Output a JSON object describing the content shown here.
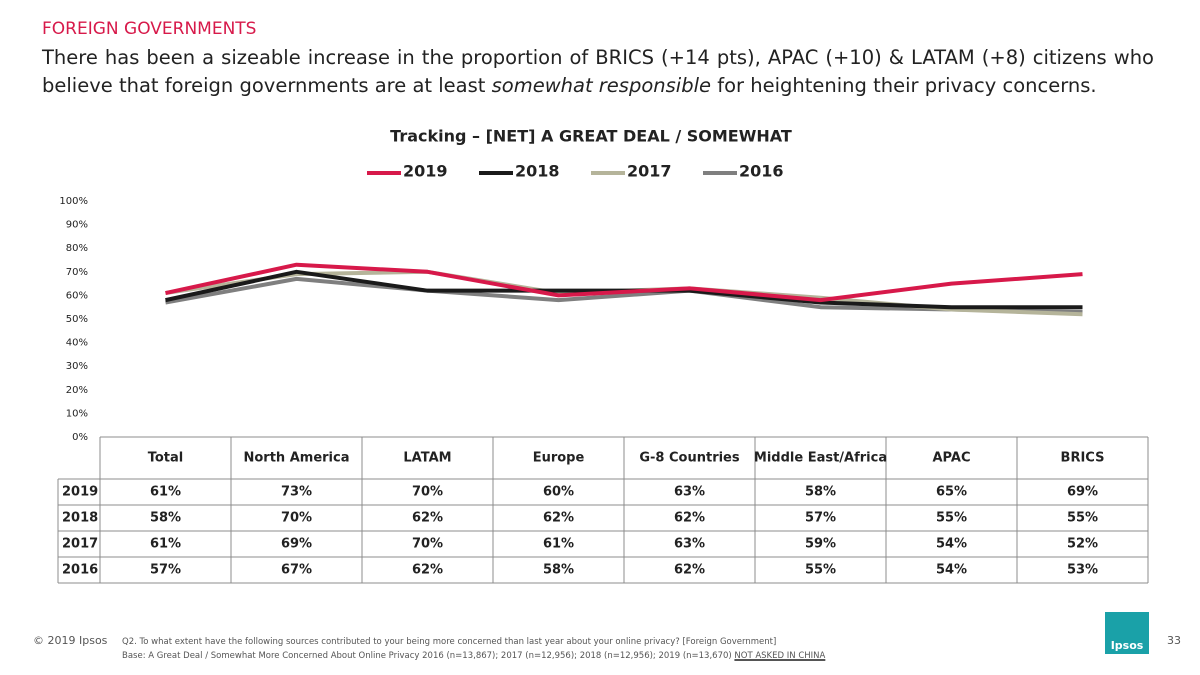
{
  "header": {
    "section": "FOREIGN GOVERNMENTS",
    "headline": [
      "There has been a sizeable increase in the proportion of BRICS (+14 pts), APAC (+10) & LATAM (+8) citizens who believe that foreign governments are at least ",
      "somewhat responsible",
      " for heightening their privacy concerns."
    ]
  },
  "chart_data": {
    "type": "line",
    "title": "Tracking – [NET] A GREAT DEAL / SOMEWHAT",
    "categories": [
      "Total",
      "North America",
      "LATAM",
      "Europe",
      "G-8 Countries",
      "Middle East/Africa",
      "APAC",
      "BRICS"
    ],
    "ylim": [
      0,
      100
    ],
    "yticks": [
      {
        "value": 0,
        "label": "0%"
      },
      {
        "value": 10,
        "label": "10%"
      },
      {
        "value": 20,
        "label": "20%"
      },
      {
        "value": 30,
        "label": "30%"
      },
      {
        "value": 40,
        "label": "40%"
      },
      {
        "value": 50,
        "label": "50%"
      },
      {
        "value": 60,
        "label": "60%"
      },
      {
        "value": 70,
        "label": "70%"
      },
      {
        "value": 80,
        "label": "80%"
      },
      {
        "value": 90,
        "label": "90%"
      },
      {
        "value": 100,
        "label": "100%"
      }
    ],
    "legend": "top",
    "series": [
      {
        "name": "2019",
        "color": "#d7194a",
        "values": [
          61,
          73,
          70,
          60,
          63,
          58,
          65,
          69
        ],
        "value_labels": [
          "61%",
          "73%",
          "70%",
          "60%",
          "63%",
          "58%",
          "65%",
          "69%"
        ]
      },
      {
        "name": "2018",
        "color": "#1a1a1a",
        "values": [
          58,
          70,
          62,
          62,
          62,
          57,
          55,
          55
        ],
        "value_labels": [
          "58%",
          "70%",
          "62%",
          "62%",
          "62%",
          "57%",
          "55%",
          "55%"
        ]
      },
      {
        "name": "2017",
        "color": "#b5b49a",
        "values": [
          61,
          69,
          70,
          61,
          63,
          59,
          54,
          52
        ],
        "value_labels": [
          "61%",
          "69%",
          "70%",
          "61%",
          "63%",
          "59%",
          "54%",
          "52%"
        ]
      },
      {
        "name": "2016",
        "color": "#7f7f7f",
        "values": [
          57,
          67,
          62,
          58,
          62,
          55,
          54,
          53
        ],
        "value_labels": [
          "57%",
          "67%",
          "62%",
          "58%",
          "62%",
          "55%",
          "54%",
          "53%"
        ]
      }
    ]
  },
  "footer": {
    "copyright": "© 2019 Ipsos",
    "question": "Q2. To what extent have the following sources contributed to your being more concerned than last year about your online privacy? [Foreign  Government]",
    "base": "Base: A Great Deal / Somewhat More Concerned About Online Privacy 2016 (n=13,867); 2017 (n=12,956); 2018 (n=12,956); 2019 (n=13,670) ",
    "note": "NOT ASKED IN CHINA",
    "page": "33",
    "logo": "Ipsos"
  }
}
